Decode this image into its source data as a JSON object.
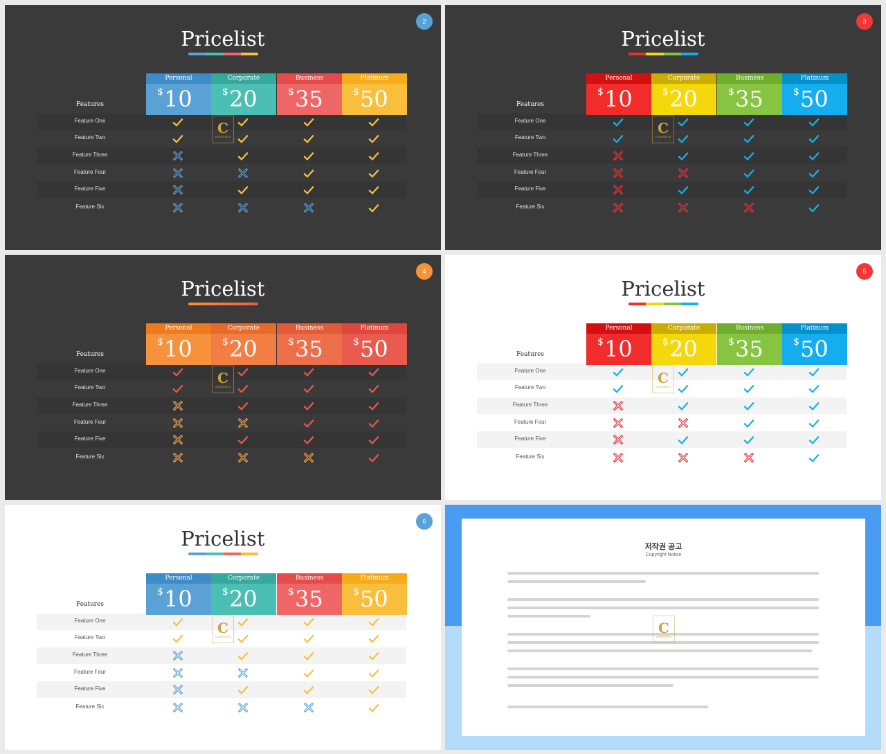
{
  "pricing": {
    "title": "Pricelist",
    "features_heading": "Features",
    "currency": "$",
    "plans": [
      {
        "name": "Personal",
        "price": "10"
      },
      {
        "name": "Corporate",
        "price": "20"
      },
      {
        "name": "Business",
        "price": "35"
      },
      {
        "name": "Platinum",
        "price": "50"
      }
    ],
    "features": [
      "Feature One",
      "Feature Two",
      "Feature Three",
      "Feature Four",
      "Feature Five",
      "Feature Six"
    ],
    "availability": [
      [
        true,
        true,
        true,
        true
      ],
      [
        true,
        true,
        true,
        true
      ],
      [
        false,
        true,
        true,
        true
      ],
      [
        false,
        false,
        true,
        true
      ],
      [
        false,
        true,
        true,
        true
      ],
      [
        false,
        false,
        false,
        true
      ]
    ],
    "watermark": {
      "letter": "C",
      "text": "CONTENTS"
    }
  },
  "slides": [
    {
      "number": "2",
      "theme": "dark",
      "badge_color": "#5aa1d6",
      "plan_colors": [
        "#5aa1d6",
        "#4bbfb3",
        "#ef6666",
        "#f9bf3c"
      ],
      "plan_header_colors": [
        "#3f8bc7",
        "#37a89c",
        "#e54b4b",
        "#f5ac1c"
      ],
      "underline_colors": [
        "#5aa1d6",
        "#4bbfb3",
        "#ef6666",
        "#f9bf3c"
      ],
      "check_color": "#f5c242",
      "cross_color": "#5aa1d6"
    },
    {
      "number": "3",
      "theme": "dark",
      "badge_color": "#f03838",
      "plan_colors": [
        "#f22b2b",
        "#f4d80c",
        "#86c441",
        "#14aef0"
      ],
      "plan_header_colors": [
        "#d31010",
        "#c9ad02",
        "#6fae2c",
        "#0690c9"
      ],
      "underline_colors": [
        "#f22b2b",
        "#f4d80c",
        "#86c441",
        "#14aef0"
      ],
      "check_color": "#1ab0ea",
      "cross_color": "#e8323a"
    },
    {
      "number": "4",
      "theme": "dark",
      "badge_color": "#f7923c",
      "plan_colors": [
        "#f7923c",
        "#f27e43",
        "#ed6e4a",
        "#e95b4f"
      ],
      "plan_header_colors": [
        "#ec7a1f",
        "#e86a2b",
        "#e35a36",
        "#dd473c"
      ],
      "underline_colors": [
        "#f7923c",
        "#e95b4f"
      ],
      "check_color": "#e9574c",
      "cross_color": "#f7a34e"
    },
    {
      "number": "5",
      "theme": "light",
      "badge_color": "#f03838",
      "plan_colors": [
        "#f22b2b",
        "#f4d80c",
        "#86c441",
        "#14aef0"
      ],
      "plan_header_colors": [
        "#d31010",
        "#c9ad02",
        "#6fae2c",
        "#0690c9"
      ],
      "underline_colors": [
        "#f22b2b",
        "#f4d80c",
        "#86c441",
        "#14aef0"
      ],
      "check_color": "#1ab0ea",
      "cross_color": "#e8323a"
    },
    {
      "number": "6",
      "theme": "light",
      "badge_color": "#5aa1d6",
      "plan_colors": [
        "#5aa1d6",
        "#4bbfb3",
        "#ef6666",
        "#f9bf3c"
      ],
      "plan_header_colors": [
        "#3f8bc7",
        "#37a89c",
        "#e54b4b",
        "#f5ac1c"
      ],
      "underline_colors": [
        "#5aa1d6",
        "#4bbfb3",
        "#ef6666",
        "#f9bf3c"
      ],
      "check_color": "#f5c242",
      "cross_color": "#5aa1d6"
    }
  ],
  "notice": {
    "title": "저작권 공고",
    "subtitle": "Copyright Notice"
  }
}
